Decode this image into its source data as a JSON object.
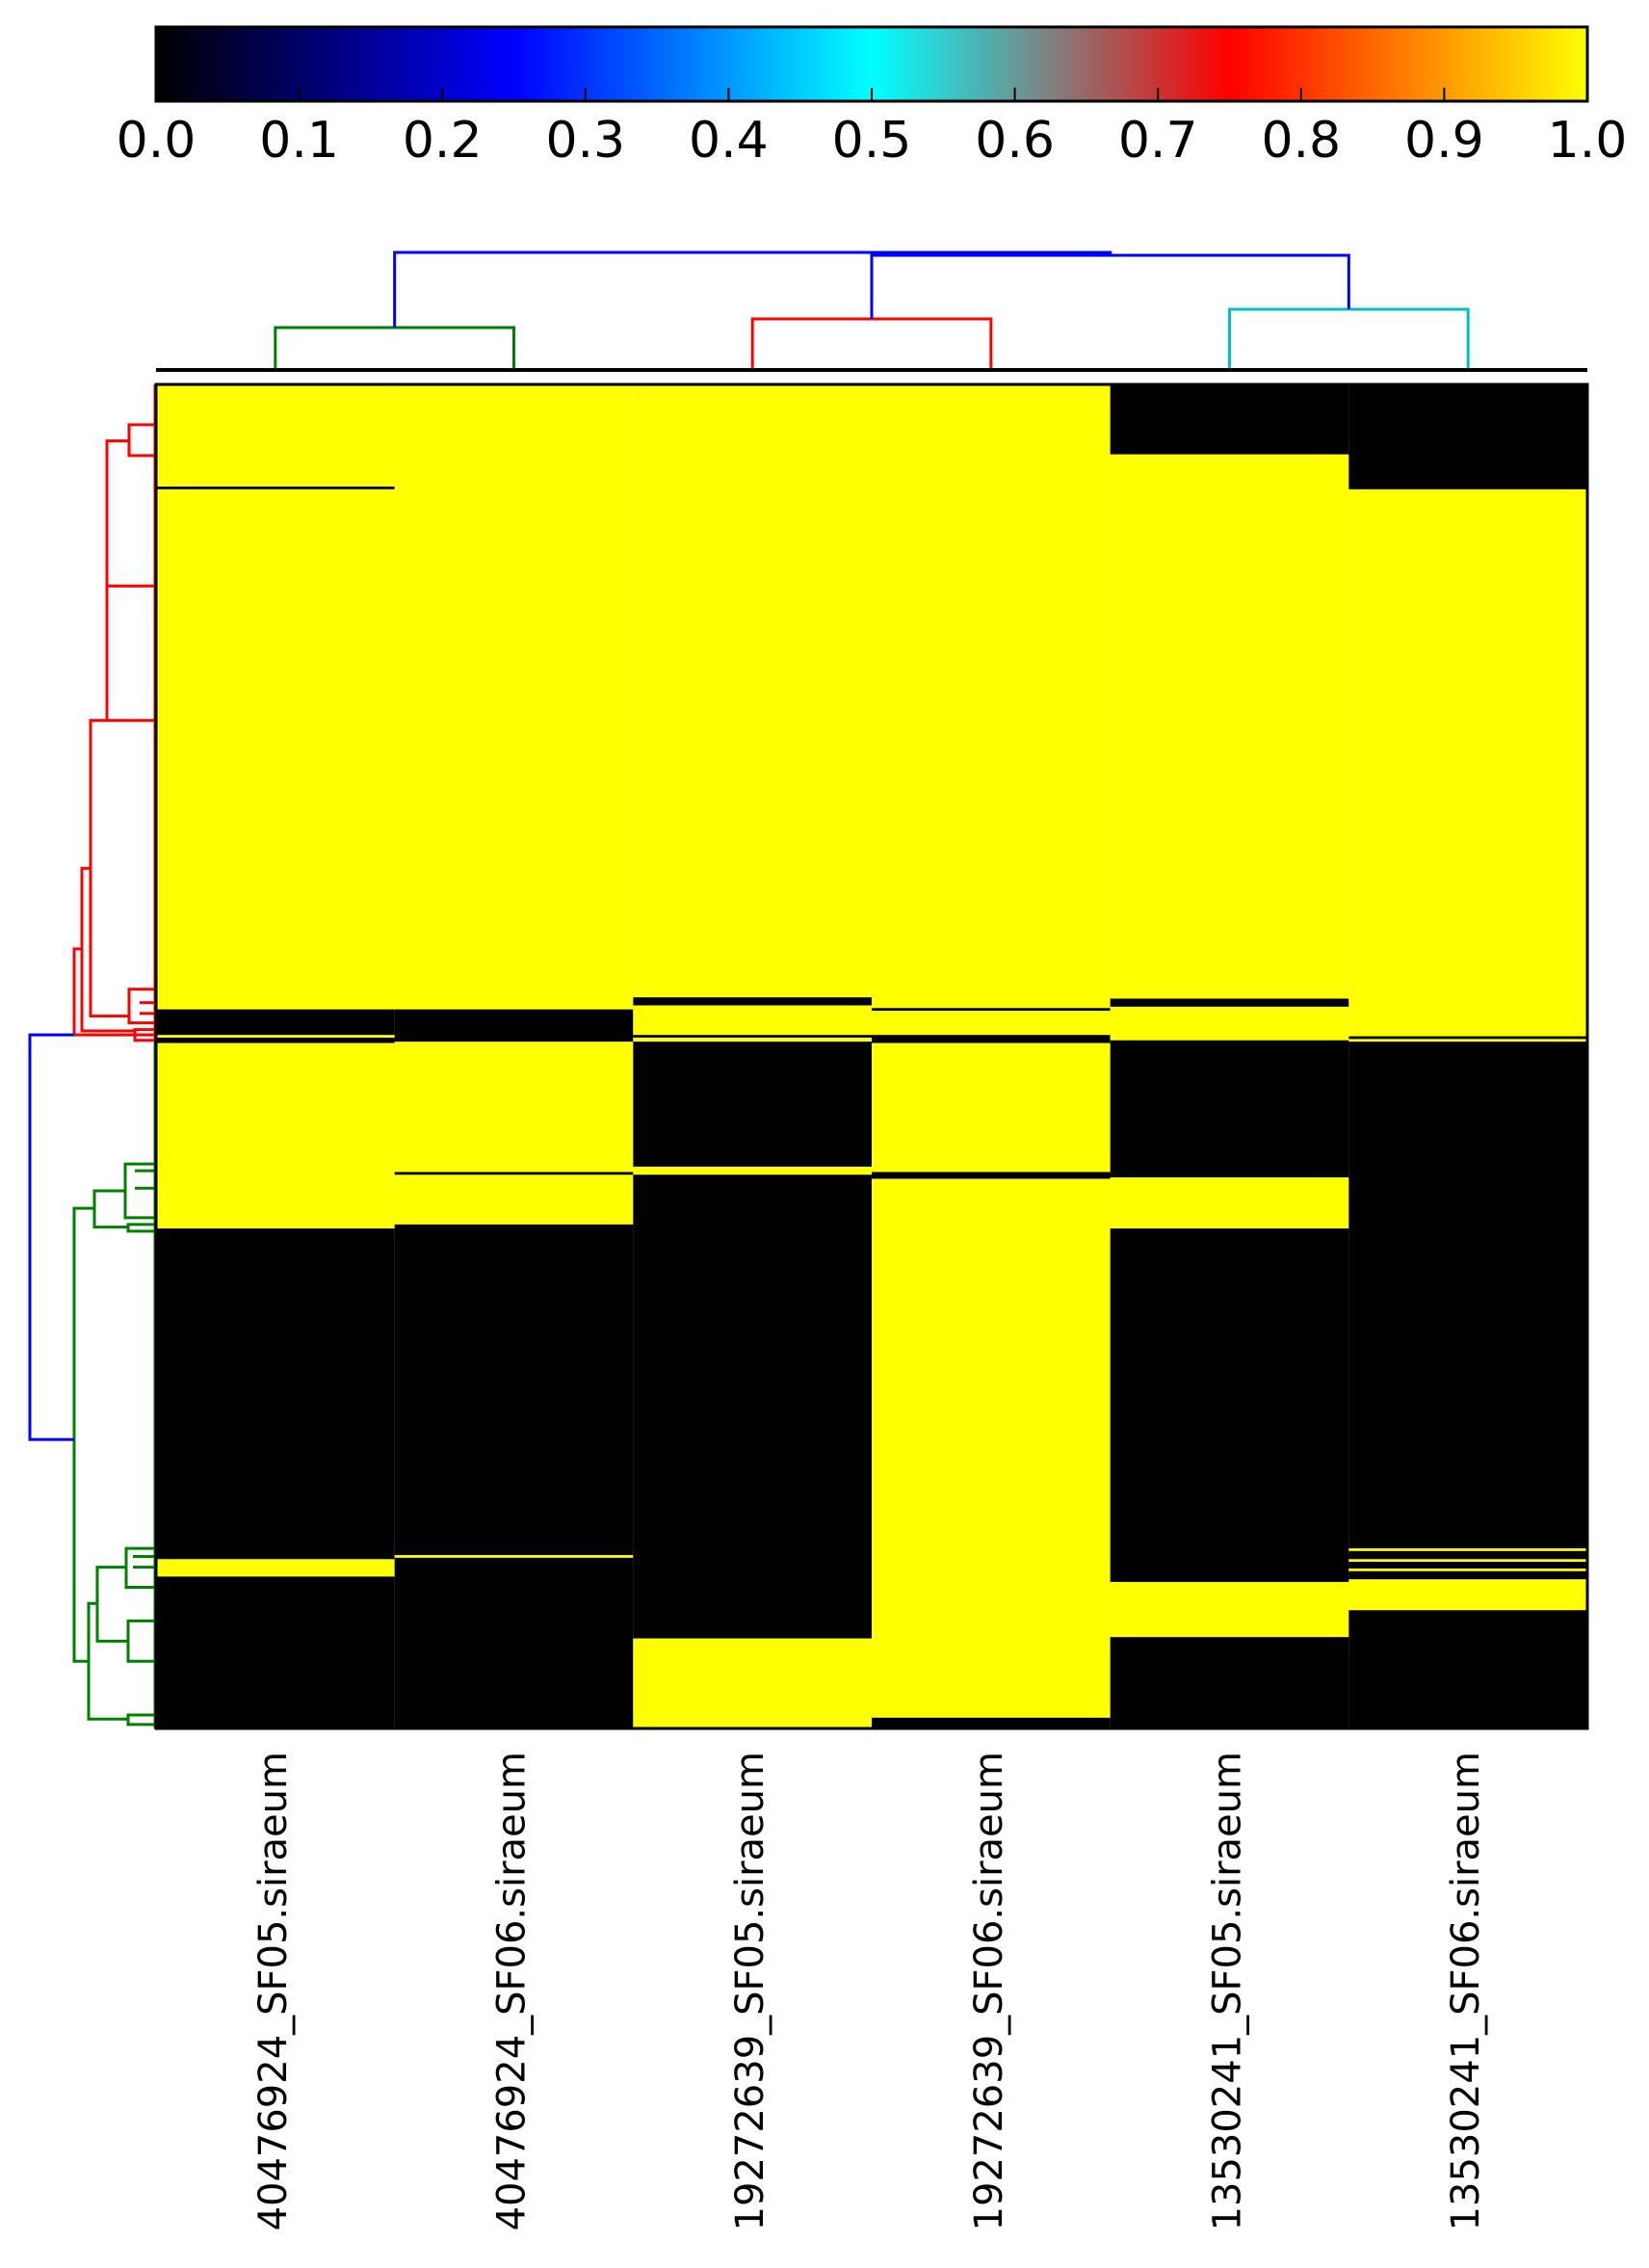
{
  "chart_data": {
    "type": "heatmap",
    "title": "",
    "xlabel": "",
    "ylabel": "",
    "colorbar": {
      "range": [
        0.0,
        1.0
      ],
      "ticks": [
        "0.0",
        "0.1",
        "0.2",
        "0.3",
        "0.4",
        "0.5",
        "0.6",
        "0.7",
        "0.8",
        "0.9",
        "1.0"
      ],
      "colors": [
        {
          "value": 0.0,
          "color": "#000000"
        },
        {
          "value": 0.25,
          "color": "#0000ff"
        },
        {
          "value": 0.5,
          "color": "#00ffff"
        },
        {
          "value": 0.625,
          "color": "#808080"
        },
        {
          "value": 0.75,
          "color": "#ff0000"
        },
        {
          "value": 1.0,
          "color": "#ffff00"
        }
      ]
    },
    "columns": [
      "40476924_SF05.siraeum",
      "40476924_SF06.siraeum",
      "19272639_SF05.siraeum",
      "19272639_SF06.siraeum",
      "13530241_SF05.siraeum",
      "13530241_SF06.siraeum"
    ],
    "row_count": 1000,
    "value_levels": [
      0,
      1
    ],
    "column_blocks": [
      [
        [
          0,
          76,
          1
        ],
        [
          76,
          78,
          0
        ],
        [
          78,
          465,
          1
        ],
        [
          465,
          484,
          0
        ],
        [
          484,
          486,
          1
        ],
        [
          486,
          490,
          0
        ],
        [
          490,
          628,
          1
        ],
        [
          628,
          874,
          0
        ],
        [
          874,
          887,
          1
        ],
        [
          887,
          1000,
          0
        ]
      ],
      [
        [
          0,
          465,
          1
        ],
        [
          465,
          489,
          0
        ],
        [
          489,
          586,
          1
        ],
        [
          586,
          588,
          0
        ],
        [
          588,
          625,
          1
        ],
        [
          625,
          871,
          0
        ],
        [
          871,
          873,
          1
        ],
        [
          873,
          1000,
          0
        ]
      ],
      [
        [
          0,
          456,
          1
        ],
        [
          456,
          462,
          0
        ],
        [
          462,
          484,
          1
        ],
        [
          484,
          486,
          0
        ],
        [
          486,
          489,
          1
        ],
        [
          489,
          582,
          0
        ],
        [
          582,
          588,
          1
        ],
        [
          588,
          933,
          0
        ],
        [
          933,
          1000,
          1
        ]
      ],
      [
        [
          0,
          464,
          1
        ],
        [
          464,
          466,
          0
        ],
        [
          466,
          484,
          1
        ],
        [
          484,
          490,
          0
        ],
        [
          490,
          586,
          1
        ],
        [
          586,
          591,
          0
        ],
        [
          591,
          886,
          1
        ],
        [
          886,
          893,
          1
        ],
        [
          893,
          992,
          1
        ],
        [
          992,
          1000,
          0
        ]
      ],
      [
        [
          0,
          52,
          0
        ],
        [
          52,
          457,
          1
        ],
        [
          457,
          463,
          0
        ],
        [
          463,
          488,
          1
        ],
        [
          488,
          590,
          0
        ],
        [
          590,
          628,
          1
        ],
        [
          628,
          891,
          0
        ],
        [
          891,
          932,
          1
        ],
        [
          932,
          1000,
          0
        ]
      ],
      [
        [
          0,
          78,
          0
        ],
        [
          78,
          485,
          1
        ],
        [
          485,
          487,
          0
        ],
        [
          487,
          489,
          1
        ],
        [
          489,
          866,
          0
        ],
        [
          866,
          868,
          1
        ],
        [
          868,
          874,
          0
        ],
        [
          874,
          876,
          1
        ],
        [
          876,
          881,
          0
        ],
        [
          881,
          883,
          1
        ],
        [
          883,
          889,
          0
        ],
        [
          889,
          912,
          1
        ],
        [
          912,
          1000,
          0
        ]
      ]
    ],
    "column_dendrogram": {
      "clusters": [
        {
          "members": [
            0,
            1
          ],
          "color": "#008000"
        },
        {
          "members": [
            2,
            3
          ],
          "color": "#ff0000"
        },
        {
          "members": [
            4,
            5
          ],
          "color": "#00bfbf"
        }
      ],
      "link_color": "#0000ff"
    },
    "row_dendrogram": {
      "clusters": [
        {
          "rows": [
            0,
            490
          ],
          "color": "#ff0000"
        },
        {
          "rows": [
            490,
            1000
          ],
          "color": "#008000"
        }
      ],
      "link_color": "#0000ff"
    }
  }
}
